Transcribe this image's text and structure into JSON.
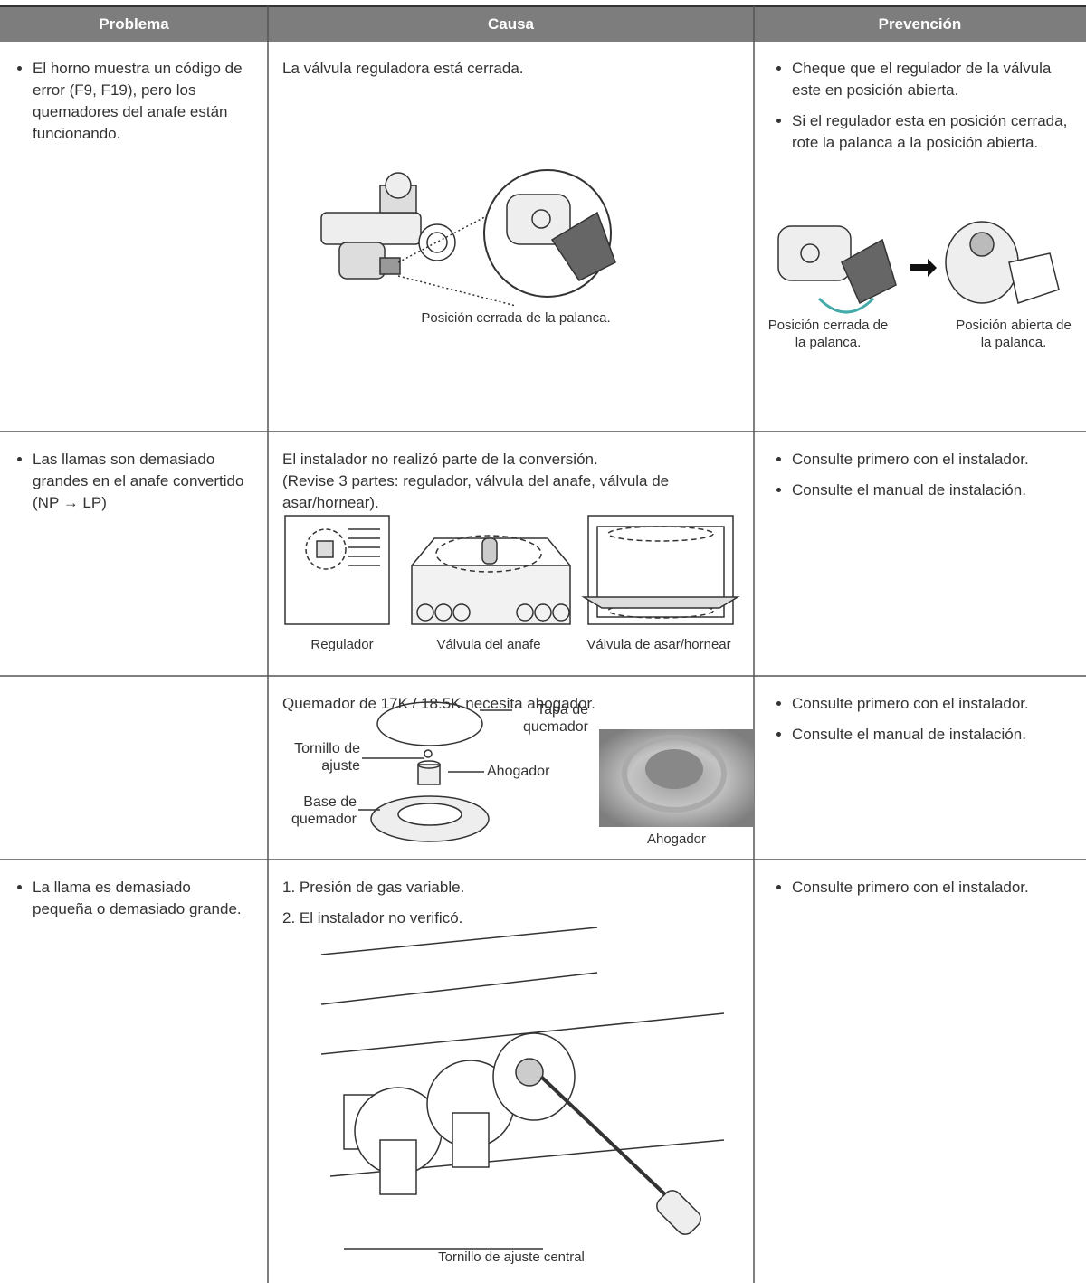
{
  "table": {
    "headers": [
      "Problema",
      "Causa",
      "Prevención"
    ],
    "rows": [
      {
        "problem": [
          "El horno muestra un código de error (F9, F19), pero los quemadores del anafe están funcionando."
        ],
        "cause": {
          "text": [
            "La válvula reguladora está cerrada."
          ],
          "captions": [
            "Posición cerrada de la palanca."
          ]
        },
        "prevention": {
          "bullets": [
            "Cheque que el regulador de la válvula este en posición abierta.",
            "Si el regulador esta en posición cerrada, rote la palanca a la posición abierta."
          ],
          "captions": [
            "Posición cerrada de la palanca.",
            "Posición abierta de la palanca."
          ]
        }
      },
      {
        "problem": [
          "Las llamas son demasiado grandes en el anafe convertido (NP → LP)"
        ],
        "cause": {
          "text": [
            "El instalador no realizó parte de la conversión.",
            "(Revise 3 partes: regulador, válvula del anafe, válvula de asar/hornear)."
          ],
          "captions": [
            "Regulador",
            "Válvula del anafe",
            "Válvula de asar/hornear"
          ]
        },
        "prevention": {
          "bullets": [
            "Consulte primero con el instalador.",
            "Consulte el manual de instalación."
          ]
        }
      },
      {
        "problem": [],
        "cause": {
          "text": [
            "Quemador de 17K / 18.5K necesita ahogador."
          ],
          "labels": [
            "Tapa de quemador",
            "Tornillo de ajuste",
            "Ahogador",
            "Base de quemador"
          ],
          "captions": [
            "Ahogador"
          ]
        },
        "prevention": {
          "bullets": [
            "Consulte primero con el instalador.",
            "Consulte el manual de instalación."
          ]
        }
      },
      {
        "problem": [
          "La llama es demasiado pequeña o demasiado grande."
        ],
        "cause": {
          "text": [
            "1. Presión de gas variable.",
            "2. El instalador no verificó."
          ],
          "captions": [
            "Tornillo de ajuste central"
          ]
        },
        "prevention": {
          "bullets": [
            "Consulte primero con el instalador."
          ]
        }
      }
    ]
  }
}
